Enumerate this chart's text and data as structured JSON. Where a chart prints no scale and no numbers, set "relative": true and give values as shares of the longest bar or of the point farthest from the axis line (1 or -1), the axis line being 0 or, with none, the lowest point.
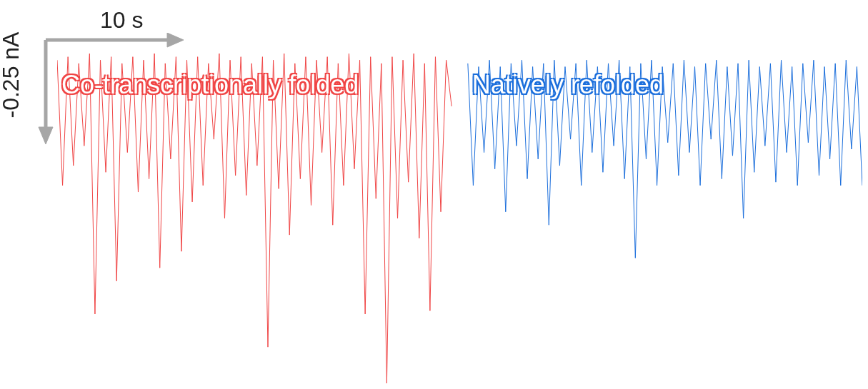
{
  "chart_data": {
    "type": "line",
    "relative": true,
    "categories": [
      null,
      null,
      null,
      null,
      null,
      null,
      null,
      null,
      null,
      null,
      null,
      null,
      null,
      null,
      null,
      null,
      null,
      null,
      null,
      null,
      null,
      null,
      null,
      null,
      null,
      null,
      null,
      null,
      null,
      null,
      null,
      null,
      null,
      null,
      null,
      null,
      null,
      null,
      null,
      null,
      null,
      null,
      null,
      null,
      null,
      null,
      null,
      null,
      null,
      null,
      null,
      null,
      null,
      null,
      null,
      null,
      null,
      null,
      null,
      null,
      null,
      null,
      null,
      null,
      null,
      null,
      null,
      null,
      null,
      null,
      null,
      null,
      null,
      null,
      null,
      null,
      null,
      null,
      null,
      null,
      null,
      null,
      null,
      null,
      null,
      null,
      null,
      null,
      null,
      null,
      null,
      null,
      null,
      null,
      null,
      null,
      null,
      null,
      null,
      null,
      null,
      null,
      null,
      null,
      null,
      null,
      null,
      null,
      null,
      null,
      null,
      null,
      null,
      null,
      null,
      null,
      null,
      null,
      null,
      null,
      null,
      null,
      null,
      null,
      null,
      null,
      null,
      null,
      null,
      null,
      null,
      null,
      null,
      null,
      null,
      null,
      null,
      null,
      null,
      null,
      null,
      null,
      null,
      null,
      null,
      null,
      null,
      null,
      null,
      null
    ],
    "series": [
      {
        "name": "Co-transcriptionally folded",
        "color": "#f04545",
        "values": [
          0.98,
          0.6,
          0.99,
          0.66,
          0.97,
          0.72,
          1.0,
          0.21,
          0.98,
          0.64,
          0.99,
          0.31,
          0.97,
          0.7,
          0.99,
          0.58,
          0.98,
          0.62,
          1.0,
          0.35,
          0.97,
          0.68,
          0.99,
          0.4,
          0.98,
          0.55,
          0.99,
          0.6,
          0.97,
          0.74,
          1.0,
          0.5,
          0.98,
          0.63,
          0.99,
          0.57,
          0.97,
          0.66,
          0.99,
          0.11,
          0.98,
          0.59,
          1.0,
          0.45,
          0.97,
          0.62,
          0.99,
          0.54,
          0.98,
          0.7,
          0.99,
          0.48,
          0.97,
          0.6,
          1.0,
          0.65,
          0.98,
          0.21,
          0.99,
          0.56,
          0.97,
          0,
          0.99,
          0.5,
          0.98,
          0.61,
          1.0,
          0.44,
          0.97,
          0.22,
          0.99,
          0.52,
          0.98,
          0.84,
          null,
          null,
          null,
          null,
          null,
          null,
          null,
          null,
          null,
          null,
          null,
          null,
          null,
          null,
          null,
          null,
          null,
          null,
          null,
          null,
          null,
          null,
          null,
          null,
          null,
          null,
          null,
          null,
          null,
          null,
          null,
          null,
          null,
          null,
          null,
          null,
          null,
          null,
          null,
          null,
          null,
          null,
          null,
          null,
          null,
          null,
          null,
          null,
          null,
          null,
          null,
          null,
          null,
          null,
          null,
          null,
          null,
          null,
          null,
          null,
          null,
          null,
          null,
          null,
          null,
          null,
          null,
          null,
          null,
          null,
          null,
          null,
          null,
          null,
          null,
          null
        ]
      },
      {
        "name": "Natively refolded",
        "color": "#1c6fdc",
        "values": [
          null,
          null,
          null,
          null,
          null,
          null,
          null,
          null,
          null,
          null,
          null,
          null,
          null,
          null,
          null,
          null,
          null,
          null,
          null,
          null,
          null,
          null,
          null,
          null,
          null,
          null,
          null,
          null,
          null,
          null,
          null,
          null,
          null,
          null,
          null,
          null,
          null,
          null,
          null,
          null,
          null,
          null,
          null,
          null,
          null,
          null,
          null,
          null,
          null,
          null,
          null,
          null,
          null,
          null,
          null,
          null,
          null,
          null,
          null,
          null,
          null,
          null,
          null,
          null,
          null,
          null,
          null,
          null,
          null,
          null,
          null,
          null,
          null,
          null,
          null,
          null,
          0.97,
          0.6,
          0.96,
          0.7,
          0.98,
          0.65,
          0.96,
          0.52,
          0.97,
          0.72,
          0.98,
          0.62,
          0.96,
          0.68,
          0.97,
          0.48,
          0.98,
          0.66,
          0.96,
          0.74,
          0.97,
          0.6,
          0.98,
          0.7,
          0.96,
          0.64,
          0.97,
          0.72,
          0.98,
          0.62,
          0.96,
          0.38,
          0.97,
          0.68,
          0.98,
          0.6,
          0.96,
          0.73,
          0.97,
          0.63,
          0.98,
          0.7,
          0.96,
          0.6,
          0.97,
          0.74,
          0.98,
          0.62,
          0.96,
          0.69,
          0.97,
          0.5,
          0.98,
          0.64,
          0.96,
          0.72,
          0.97,
          0.61,
          0.98,
          0.7,
          0.96,
          0.6,
          0.97,
          0.73,
          0.98,
          0.63,
          0.96,
          0.68,
          0.97,
          0.6,
          0.98,
          0.71,
          0.96,
          0.6
        ]
      }
    ],
    "annotations": [
      "10 s",
      "-0.25 nA"
    ]
  }
}
